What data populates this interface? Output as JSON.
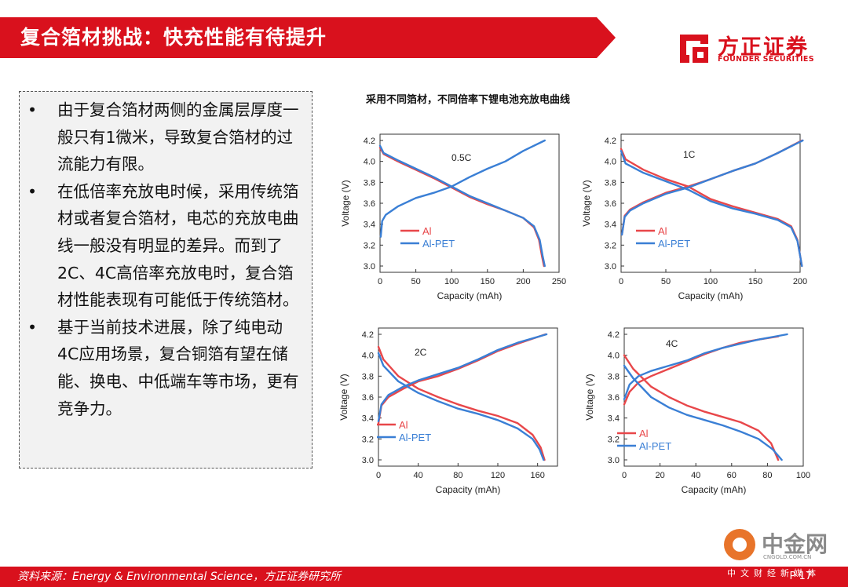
{
  "header": {
    "title": "复合箔材挑战：快充性能有待提升"
  },
  "logo": {
    "name_cn": "方正证券",
    "name_en": "FOUNDER SECURITIES",
    "color": "#d9111d"
  },
  "bullets": [
    {
      "marker": "•",
      "text": "由于复合箔材两侧的金属层厚度一般只有1微米，导致复合箔材的过流能力有限。"
    },
    {
      "marker": "•",
      "text": "在低倍率充放电时候，采用传统箔材或者复合箔材，电芯的充放电曲线一般没有明显的差异。而到了2C、4C高倍率充放电时，复合箔材性能表现有可能低于传统箔材。"
    },
    {
      "marker": "•",
      "text": "基于当前技术进展，除了纯电动4C应用场景，复合铜箔有望在储能、换电、中低端车等市场，更有竞争力。"
    }
  ],
  "figure_title": "采用不同箔材，不同倍率下锂电池充放电曲线",
  "footer": {
    "source": "资料来源：Energy & Environmental Science，方正证券研究所",
    "page": "P 17"
  },
  "watermark": {
    "name": "中金网",
    "url": "CNGOLD.COM.CN",
    "sub": "中文财经新媒体"
  },
  "colors": {
    "Al": "#e8474a",
    "Al-PET": "#3a7fd5",
    "accent": "#d9111d"
  },
  "chart_data": [
    {
      "type": "line",
      "label": "0.5C",
      "xlabel": "Capacity (mAh)",
      "ylabel": "Voltage (V)",
      "xlim": [
        0,
        250
      ],
      "ylim": [
        3.0,
        4.2
      ],
      "xticks": [
        0,
        50,
        100,
        150,
        200,
        250
      ],
      "yticks": [
        3.0,
        3.2,
        3.4,
        3.6,
        3.8,
        4.0,
        4.2
      ],
      "legend": [
        "Al",
        "Al-PET"
      ],
      "legend_position": "left-lower",
      "series": [
        {
          "name": "Al",
          "curve": "discharge",
          "points": [
            [
              0,
              4.13
            ],
            [
              5,
              4.07
            ],
            [
              25,
              4.0
            ],
            [
              50,
              3.92
            ],
            [
              75,
              3.84
            ],
            [
              100,
              3.75
            ],
            [
              125,
              3.66
            ],
            [
              150,
              3.59
            ],
            [
              175,
              3.53
            ],
            [
              200,
              3.46
            ],
            [
              215,
              3.37
            ],
            [
              222,
              3.25
            ],
            [
              226,
              3.1
            ],
            [
              229,
              3.0
            ]
          ]
        },
        {
          "name": "Al-PET",
          "curve": "discharge",
          "points": [
            [
              0,
              4.15
            ],
            [
              5,
              4.08
            ],
            [
              25,
              4.01
            ],
            [
              50,
              3.93
            ],
            [
              75,
              3.85
            ],
            [
              100,
              3.76
            ],
            [
              125,
              3.67
            ],
            [
              150,
              3.6
            ],
            [
              175,
              3.53
            ],
            [
              200,
              3.46
            ],
            [
              215,
              3.38
            ],
            [
              223,
              3.25
            ],
            [
              227,
              3.1
            ],
            [
              230,
              3.0
            ]
          ]
        },
        {
          "name": "Al-PET",
          "curve": "charge",
          "points": [
            [
              1,
              3.28
            ],
            [
              3,
              3.43
            ],
            [
              8,
              3.49
            ],
            [
              25,
              3.57
            ],
            [
              50,
              3.65
            ],
            [
              75,
              3.7
            ],
            [
              100,
              3.76
            ],
            [
              125,
              3.85
            ],
            [
              150,
              3.93
            ],
            [
              175,
              4.0
            ],
            [
              200,
              4.1
            ],
            [
              230,
              4.2
            ]
          ]
        }
      ]
    },
    {
      "type": "line",
      "label": "1C",
      "xlabel": "Capacity (mAh)",
      "ylabel": "Voltage (V)",
      "xlim": [
        0,
        200
      ],
      "ylim": [
        3.0,
        4.2
      ],
      "xticks": [
        0,
        50,
        100,
        150,
        200
      ],
      "yticks": [
        3.0,
        3.2,
        3.4,
        3.6,
        3.8,
        4.0,
        4.2
      ],
      "legend": [
        "Al",
        "Al-PET"
      ],
      "legend_position": "right-lower",
      "series": [
        {
          "name": "Al",
          "curve": "discharge",
          "points": [
            [
              0,
              4.12
            ],
            [
              5,
              4.02
            ],
            [
              25,
              3.92
            ],
            [
              50,
              3.83
            ],
            [
              75,
              3.76
            ],
            [
              100,
              3.64
            ],
            [
              125,
              3.57
            ],
            [
              150,
              3.51
            ],
            [
              175,
              3.45
            ],
            [
              190,
              3.38
            ],
            [
              197,
              3.25
            ],
            [
              200,
              3.1
            ],
            [
              202,
              3.0
            ]
          ]
        },
        {
          "name": "Al-PET",
          "curve": "discharge",
          "points": [
            [
              0,
              4.1
            ],
            [
              5,
              3.98
            ],
            [
              25,
              3.89
            ],
            [
              50,
              3.81
            ],
            [
              75,
              3.73
            ],
            [
              100,
              3.62
            ],
            [
              125,
              3.55
            ],
            [
              150,
              3.5
            ],
            [
              175,
              3.44
            ],
            [
              190,
              3.37
            ],
            [
              197,
              3.24
            ],
            [
              200,
              3.1
            ],
            [
              202,
              3.0
            ]
          ]
        },
        {
          "name": "Al",
          "curve": "charge",
          "points": [
            [
              1,
              3.3
            ],
            [
              4,
              3.48
            ],
            [
              10,
              3.54
            ],
            [
              25,
              3.61
            ],
            [
              50,
              3.7
            ],
            [
              75,
              3.76
            ],
            [
              100,
              3.83
            ],
            [
              125,
              3.91
            ],
            [
              150,
              3.98
            ],
            [
              175,
              4.08
            ],
            [
              202,
              4.2
            ]
          ]
        },
        {
          "name": "Al-PET",
          "curve": "charge",
          "points": [
            [
              1,
              3.3
            ],
            [
              4,
              3.47
            ],
            [
              10,
              3.53
            ],
            [
              25,
              3.6
            ],
            [
              50,
              3.69
            ],
            [
              75,
              3.75
            ],
            [
              100,
              3.83
            ],
            [
              125,
              3.91
            ],
            [
              150,
              3.98
            ],
            [
              175,
              4.08
            ],
            [
              203,
              4.2
            ]
          ]
        }
      ]
    },
    {
      "type": "line",
      "label": "2C",
      "xlabel": "Capacity (mAh)",
      "ylabel": "Voltage (V)",
      "xlim": [
        0,
        180
      ],
      "ylim": [
        3.0,
        4.2
      ],
      "xticks": [
        0,
        40,
        80,
        120,
        160
      ],
      "yticks": [
        3.0,
        3.2,
        3.4,
        3.6,
        3.8,
        4.0,
        4.2
      ],
      "legend": [
        "Al",
        "Al-PET"
      ],
      "legend_position": "left-lower",
      "series": [
        {
          "name": "Al",
          "curve": "discharge",
          "points": [
            [
              0,
              4.08
            ],
            [
              5,
              3.96
            ],
            [
              20,
              3.8
            ],
            [
              40,
              3.68
            ],
            [
              60,
              3.6
            ],
            [
              80,
              3.53
            ],
            [
              100,
              3.47
            ],
            [
              120,
              3.42
            ],
            [
              140,
              3.35
            ],
            [
              155,
              3.24
            ],
            [
              163,
              3.12
            ],
            [
              167,
              3.0
            ]
          ]
        },
        {
          "name": "Al-PET",
          "curve": "discharge",
          "points": [
            [
              0,
              4.02
            ],
            [
              5,
              3.9
            ],
            [
              20,
              3.75
            ],
            [
              40,
              3.64
            ],
            [
              60,
              3.56
            ],
            [
              80,
              3.49
            ],
            [
              100,
              3.44
            ],
            [
              120,
              3.38
            ],
            [
              140,
              3.3
            ],
            [
              155,
              3.2
            ],
            [
              162,
              3.1
            ],
            [
              166,
              3.0
            ]
          ]
        },
        {
          "name": "Al",
          "curve": "charge",
          "points": [
            [
              0,
              3.35
            ],
            [
              3,
              3.52
            ],
            [
              10,
              3.6
            ],
            [
              25,
              3.68
            ],
            [
              40,
              3.75
            ],
            [
              60,
              3.8
            ],
            [
              80,
              3.87
            ],
            [
              100,
              3.95
            ],
            [
              120,
              4.04
            ],
            [
              140,
              4.11
            ],
            [
              168,
              4.2
            ]
          ]
        },
        {
          "name": "Al-PET",
          "curve": "charge",
          "points": [
            [
              0,
              3.37
            ],
            [
              3,
              3.53
            ],
            [
              10,
              3.62
            ],
            [
              25,
              3.7
            ],
            [
              40,
              3.76
            ],
            [
              60,
              3.82
            ],
            [
              80,
              3.88
            ],
            [
              100,
              3.96
            ],
            [
              120,
              4.05
            ],
            [
              140,
              4.12
            ],
            [
              169,
              4.2
            ]
          ]
        }
      ]
    },
    {
      "type": "line",
      "label": "4C",
      "xlabel": "Capacity (mAh)",
      "ylabel": "Voltage (V)",
      "xlim": [
        0,
        100
      ],
      "ylim": [
        3.0,
        4.2
      ],
      "xticks": [
        0,
        20,
        40,
        60,
        80,
        100
      ],
      "yticks": [
        3.0,
        3.2,
        3.4,
        3.6,
        3.8,
        4.0,
        4.2
      ],
      "legend": [
        "Al",
        "Al-PET"
      ],
      "legend_position": "left-lower",
      "series": [
        {
          "name": "Al",
          "curve": "discharge",
          "points": [
            [
              0,
              4.0
            ],
            [
              5,
              3.87
            ],
            [
              15,
              3.7
            ],
            [
              25,
              3.6
            ],
            [
              35,
              3.52
            ],
            [
              45,
              3.46
            ],
            [
              55,
              3.41
            ],
            [
              65,
              3.36
            ],
            [
              75,
              3.28
            ],
            [
              82,
              3.16
            ],
            [
              86,
              3.0
            ]
          ]
        },
        {
          "name": "Al-PET",
          "curve": "discharge",
          "points": [
            [
              0,
              3.9
            ],
            [
              5,
              3.78
            ],
            [
              15,
              3.6
            ],
            [
              25,
              3.5
            ],
            [
              35,
              3.43
            ],
            [
              45,
              3.38
            ],
            [
              55,
              3.33
            ],
            [
              65,
              3.27
            ],
            [
              75,
              3.2
            ],
            [
              83,
              3.1
            ],
            [
              88,
              3.0
            ]
          ]
        },
        {
          "name": "Al",
          "curve": "charge",
          "points": [
            [
              0,
              3.53
            ],
            [
              3,
              3.65
            ],
            [
              8,
              3.74
            ],
            [
              15,
              3.8
            ],
            [
              25,
              3.87
            ],
            [
              35,
              3.94
            ],
            [
              45,
              4.01
            ],
            [
              55,
              4.07
            ],
            [
              65,
              4.12
            ],
            [
              75,
              4.15
            ],
            [
              86,
              4.18
            ]
          ]
        },
        {
          "name": "Al-PET",
          "curve": "charge",
          "points": [
            [
              0,
              3.58
            ],
            [
              3,
              3.72
            ],
            [
              8,
              3.8
            ],
            [
              15,
              3.85
            ],
            [
              25,
              3.9
            ],
            [
              35,
              3.95
            ],
            [
              45,
              4.02
            ],
            [
              55,
              4.07
            ],
            [
              65,
              4.11
            ],
            [
              75,
              4.15
            ],
            [
              91,
              4.2
            ]
          ]
        }
      ]
    }
  ]
}
